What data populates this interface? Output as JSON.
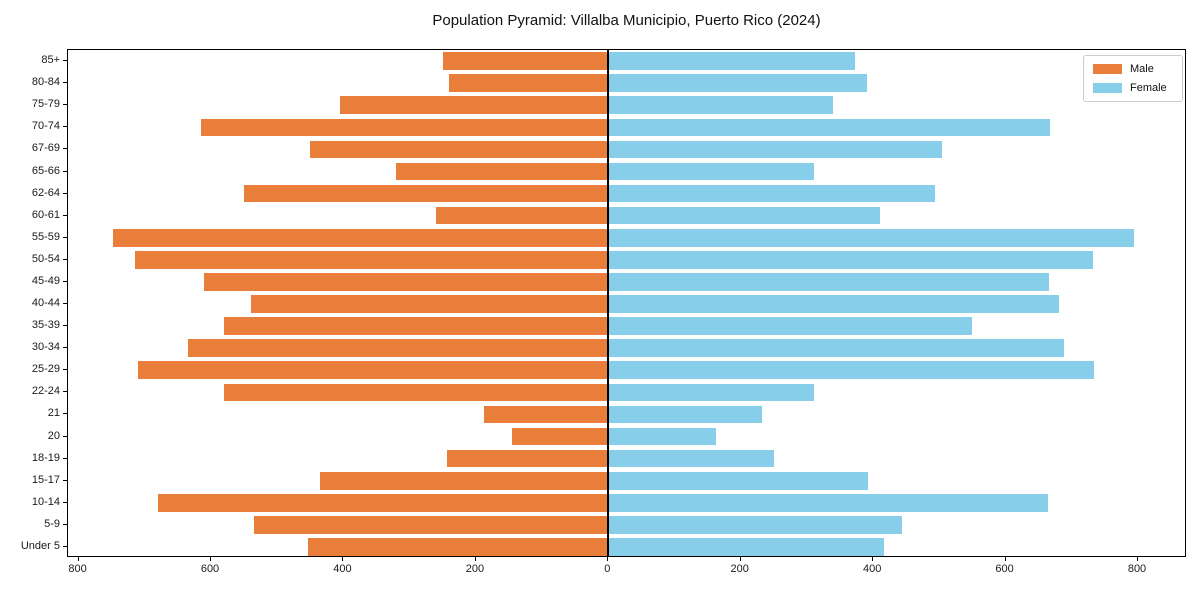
{
  "title": "Population Pyramid: Villalba Municipio, Puerto Rico (2024)",
  "colors": {
    "male": "#e87e3a",
    "female": "#87ceeb",
    "axis": "#000000",
    "background": "#ffffff"
  },
  "legend": {
    "position": "upper right",
    "items": [
      {
        "label": "Male",
        "color_key": "male"
      },
      {
        "label": "Female",
        "color_key": "female"
      }
    ]
  },
  "chart_data": {
    "type": "bar",
    "subtype": "population-pyramid",
    "orientation": "horizontal",
    "title": "Population Pyramid: Villalba Municipio, Puerto Rico (2024)",
    "categories": [
      "85+",
      "80-84",
      "75-79",
      "70-74",
      "67-69",
      "65-66",
      "62-64",
      "60-61",
      "55-59",
      "50-54",
      "45-49",
      "40-44",
      "35-39",
      "30-34",
      "25-29",
      "22-24",
      "21",
      "20",
      "18-19",
      "15-17",
      "10-14",
      "5-9",
      "Under 5"
    ],
    "series": [
      {
        "name": "Male",
        "side": "left",
        "values": [
          250,
          240,
          405,
          615,
          450,
          320,
          550,
          260,
          748,
          715,
          610,
          540,
          580,
          635,
          710,
          580,
          188,
          146,
          244,
          435,
          680,
          535,
          453
        ]
      },
      {
        "name": "Female",
        "side": "right",
        "values": [
          372,
          391,
          340,
          667,
          504,
          311,
          493,
          410,
          794,
          732,
          665,
          681,
          549,
          688,
          734,
          310,
          232,
          163,
          250,
          393,
          664,
          443,
          416
        ]
      }
    ],
    "x_tick_values": [
      -800,
      -600,
      -400,
      -200,
      0,
      200,
      400,
      600,
      800
    ],
    "x_tick_labels": [
      "800",
      "600",
      "400",
      "200",
      "0",
      "200",
      "400",
      "600",
      "800"
    ],
    "xlim": [
      -816,
      874
    ],
    "xlabel": "",
    "ylabel": "",
    "grid": false,
    "bar_relative_height": 0.8,
    "legend_position": "upper right"
  }
}
